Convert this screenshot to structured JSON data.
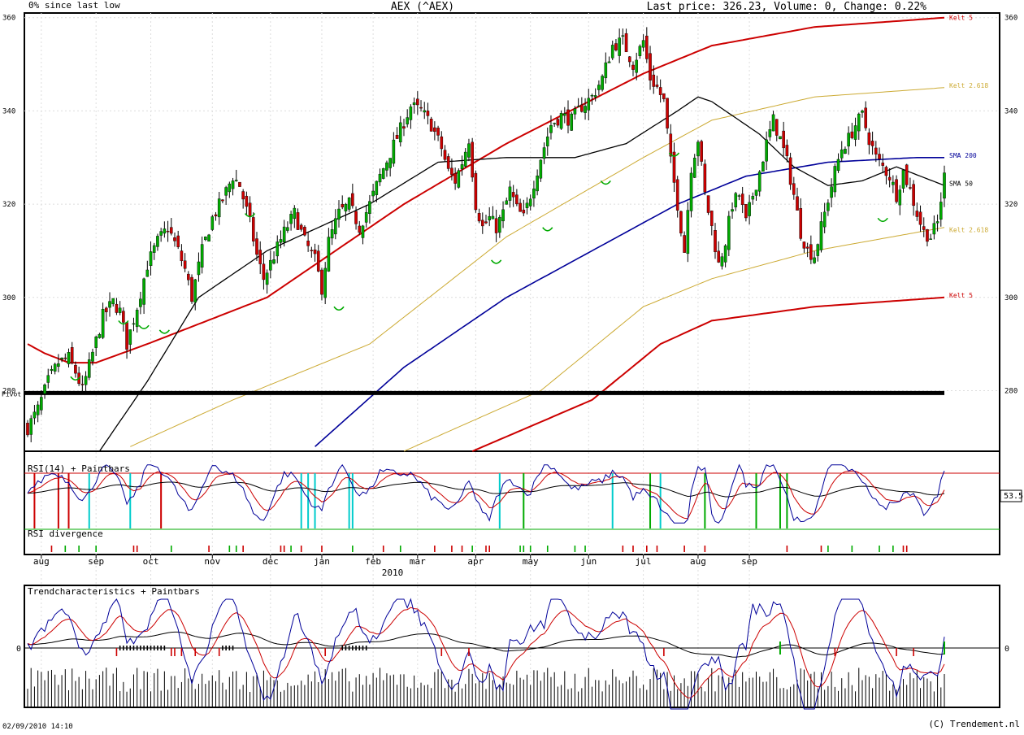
{
  "header": {
    "left": "0% since last low",
    "center": "AEX (^AEX)",
    "right": "Last price: 326.23, Volume: 0, Change: 0.22%"
  },
  "footer": {
    "timestamp": "02/09/2010 14:10",
    "copyright": "(C) Trendement.nl"
  },
  "colors": {
    "red": "#cc0000",
    "blue": "#000099",
    "gold": "#ccaa33",
    "green_candle": "#00aa00",
    "red_candle": "#cc0000",
    "cyan": "#00cccc",
    "purple": "#990099"
  },
  "chart_data": [
    {
      "type": "candlestick",
      "panel": "price",
      "y_ticks": [
        280,
        300,
        320,
        340,
        360
      ],
      "ylim": [
        267,
        361
      ],
      "x_ticks": [
        "aug",
        "sep",
        "oct",
        "nov",
        "dec",
        "jan",
        "feb",
        "mar",
        "apr",
        "may",
        "jun",
        "jul",
        "aug",
        "sep"
      ],
      "x_year_label": "2010",
      "support_level": 279.5,
      "support_label": "Pivot",
      "series_labels": {
        "kelt_upper": "Kelt 5",
        "kelt_mid_upper": "Kelt 2.618",
        "sma200": "SMA 200",
        "sma50": "SMA 50",
        "kelt_mid_lower": "Kelt 2.618",
        "kelt_lower": "Kelt 5"
      },
      "close_anchors": [
        [
          0,
          272
        ],
        [
          3,
          276
        ],
        [
          6,
          282
        ],
        [
          9,
          286
        ],
        [
          12,
          287
        ],
        [
          14,
          284
        ],
        [
          16,
          280
        ],
        [
          19,
          288
        ],
        [
          22,
          296
        ],
        [
          25,
          299
        ],
        [
          27,
          297
        ],
        [
          29,
          290
        ],
        [
          32,
          298
        ],
        [
          35,
          307
        ],
        [
          38,
          312
        ],
        [
          41,
          315
        ],
        [
          44,
          310
        ],
        [
          46,
          306
        ],
        [
          48,
          300
        ],
        [
          51,
          310
        ],
        [
          54,
          317
        ],
        [
          57,
          321
        ],
        [
          60,
          326
        ],
        [
          62,
          324
        ],
        [
          65,
          316
        ],
        [
          67,
          309
        ],
        [
          69,
          304
        ],
        [
          72,
          309
        ],
        [
          75,
          314
        ],
        [
          78,
          318
        ],
        [
          81,
          312
        ],
        [
          84,
          308
        ],
        [
          86,
          302
        ],
        [
          88,
          312
        ],
        [
          91,
          318
        ],
        [
          94,
          320
        ],
        [
          97,
          315
        ],
        [
          100,
          320
        ],
        [
          103,
          326
        ],
        [
          106,
          331
        ],
        [
          109,
          336
        ],
        [
          112,
          341
        ],
        [
          115,
          340
        ],
        [
          118,
          337
        ],
        [
          121,
          332
        ],
        [
          123,
          327
        ],
        [
          125,
          325
        ],
        [
          127,
          329
        ],
        [
          129,
          334
        ],
        [
          131,
          320
        ],
        [
          133,
          315
        ],
        [
          135,
          317
        ],
        [
          137,
          315
        ],
        [
          139,
          318
        ],
        [
          141,
          323
        ],
        [
          143,
          319
        ],
        [
          145,
          317
        ],
        [
          147,
          322
        ],
        [
          150,
          330
        ],
        [
          153,
          337
        ],
        [
          156,
          339
        ],
        [
          159,
          338
        ],
        [
          162,
          341
        ],
        [
          165,
          343
        ],
        [
          168,
          347
        ],
        [
          171,
          354
        ],
        [
          174,
          355
        ],
        [
          177,
          350
        ],
        [
          180,
          355
        ],
        [
          182,
          347
        ],
        [
          184,
          345
        ],
        [
          186,
          342
        ],
        [
          188,
          329
        ],
        [
          190,
          320
        ],
        [
          192,
          310
        ],
        [
          194,
          328
        ],
        [
          196,
          334
        ],
        [
          198,
          322
        ],
        [
          200,
          315
        ],
        [
          202,
          307
        ],
        [
          204,
          312
        ],
        [
          206,
          320
        ],
        [
          208,
          322
        ],
        [
          210,
          316
        ],
        [
          212,
          322
        ],
        [
          214,
          327
        ],
        [
          216,
          333
        ],
        [
          218,
          338
        ],
        [
          220,
          334
        ],
        [
          222,
          329
        ],
        [
          224,
          322
        ],
        [
          226,
          314
        ],
        [
          228,
          310
        ],
        [
          230,
          309
        ],
        [
          232,
          315
        ],
        [
          234,
          321
        ],
        [
          236,
          327
        ],
        [
          238,
          332
        ],
        [
          240,
          334
        ],
        [
          242,
          337
        ],
        [
          244,
          339
        ],
        [
          246,
          334
        ],
        [
          248,
          330
        ],
        [
          250,
          328
        ],
        [
          252,
          326
        ],
        [
          254,
          322
        ],
        [
          256,
          327
        ],
        [
          258,
          323
        ],
        [
          260,
          318
        ],
        [
          262,
          314
        ],
        [
          264,
          313
        ],
        [
          266,
          316
        ],
        [
          268,
          326
        ]
      ],
      "kelt_upper_anchors": [
        [
          20,
          286
        ],
        [
          35,
          290
        ],
        [
          70,
          300
        ],
        [
          110,
          320
        ],
        [
          140,
          333
        ],
        [
          180,
          348
        ],
        [
          200,
          354
        ],
        [
          230,
          358
        ],
        [
          268,
          360
        ]
      ],
      "kelt_mid_upper_anchors": [
        [
          30,
          268
        ],
        [
          60,
          278
        ],
        [
          100,
          290
        ],
        [
          140,
          313
        ],
        [
          180,
          330
        ],
        [
          200,
          338
        ],
        [
          230,
          343
        ],
        [
          268,
          345
        ]
      ],
      "kelt_mid_lower_anchors": [
        [
          110,
          267
        ],
        [
          150,
          280
        ],
        [
          180,
          298
        ],
        [
          200,
          304
        ],
        [
          230,
          310
        ],
        [
          268,
          315
        ]
      ],
      "kelt_lower_anchors": [
        [
          130,
          267
        ],
        [
          165,
          278
        ],
        [
          185,
          290
        ],
        [
          200,
          295
        ],
        [
          230,
          298
        ],
        [
          268,
          300
        ]
      ],
      "kelt_upper_start": [
        [
          0,
          290
        ],
        [
          5,
          288
        ],
        [
          12,
          286
        ]
      ],
      "sma50_anchors": [
        [
          21,
          267
        ],
        [
          35,
          282
        ],
        [
          50,
          300
        ],
        [
          70,
          310
        ],
        [
          100,
          320
        ],
        [
          120,
          329
        ],
        [
          140,
          330
        ],
        [
          160,
          330
        ],
        [
          175,
          333
        ],
        [
          190,
          340
        ],
        [
          196,
          343
        ],
        [
          200,
          342
        ],
        [
          214,
          335
        ],
        [
          224,
          328
        ],
        [
          234,
          324
        ],
        [
          244,
          325
        ],
        [
          254,
          328
        ],
        [
          268,
          324
        ]
      ],
      "sma200_anchors": [
        [
          84,
          268
        ],
        [
          110,
          285
        ],
        [
          140,
          300
        ],
        [
          170,
          312
        ],
        [
          190,
          320
        ],
        [
          210,
          326
        ],
        [
          234,
          329
        ],
        [
          260,
          330
        ],
        [
          268,
          330
        ]
      ]
    },
    {
      "type": "line",
      "panel": "rsi",
      "title": "RSI(14) + Paintbars",
      "sub_title": "RSI divergence",
      "last_value_label": "53.5"
    },
    {
      "type": "line",
      "panel": "trend",
      "title": "Trendcharacteristics + Paintbars",
      "zero_label": "0"
    }
  ]
}
